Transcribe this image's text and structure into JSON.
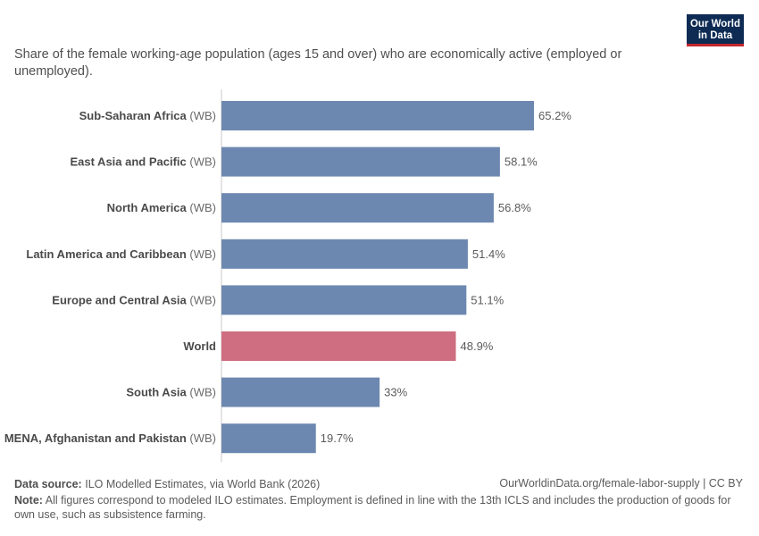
{
  "header": {
    "subtitle": "Share of the female working-age population (ages 15 and over) who are economically active (employed or unemployed).",
    "logo_line1": "Our World",
    "logo_line2": "in Data"
  },
  "footer": {
    "source_label": "Data source:",
    "source_text": "ILO Modelled Estimates, via World Bank (2026)",
    "url": "OurWorldinData.org/female-labor-supply | CC BY",
    "note_label": "Note:",
    "note_text": "All figures correspond to modeled ILO estimates. Employment is defined in line with the 13th ICLS and includes the production of goods for own use, such as subsistence farming."
  },
  "chart_data": {
    "type": "bar",
    "orientation": "horizontal",
    "categories": [
      {
        "name": "Sub-Saharan Africa",
        "suffix": "(WB)"
      },
      {
        "name": "East Asia and Pacific",
        "suffix": "(WB)"
      },
      {
        "name": "North America",
        "suffix": "(WB)"
      },
      {
        "name": "Latin America and Caribbean",
        "suffix": "(WB)"
      },
      {
        "name": "Europe and Central Asia",
        "suffix": "(WB)"
      },
      {
        "name": "World",
        "suffix": ""
      },
      {
        "name": "South Asia",
        "suffix": "(WB)"
      },
      {
        "name": "MENA, Afghanistan and Pakistan",
        "suffix": "(WB)"
      }
    ],
    "values": [
      65.2,
      58.1,
      56.8,
      51.4,
      51.1,
      48.9,
      33,
      19.7
    ],
    "value_labels": [
      "65.2%",
      "58.1%",
      "56.8%",
      "51.4%",
      "51.1%",
      "48.9%",
      "33%",
      "19.7%"
    ],
    "highlight": "World",
    "colors": {
      "default": "#6d88b0",
      "highlight": "#cf6e80"
    },
    "xlim": [
      0,
      65.2
    ]
  }
}
